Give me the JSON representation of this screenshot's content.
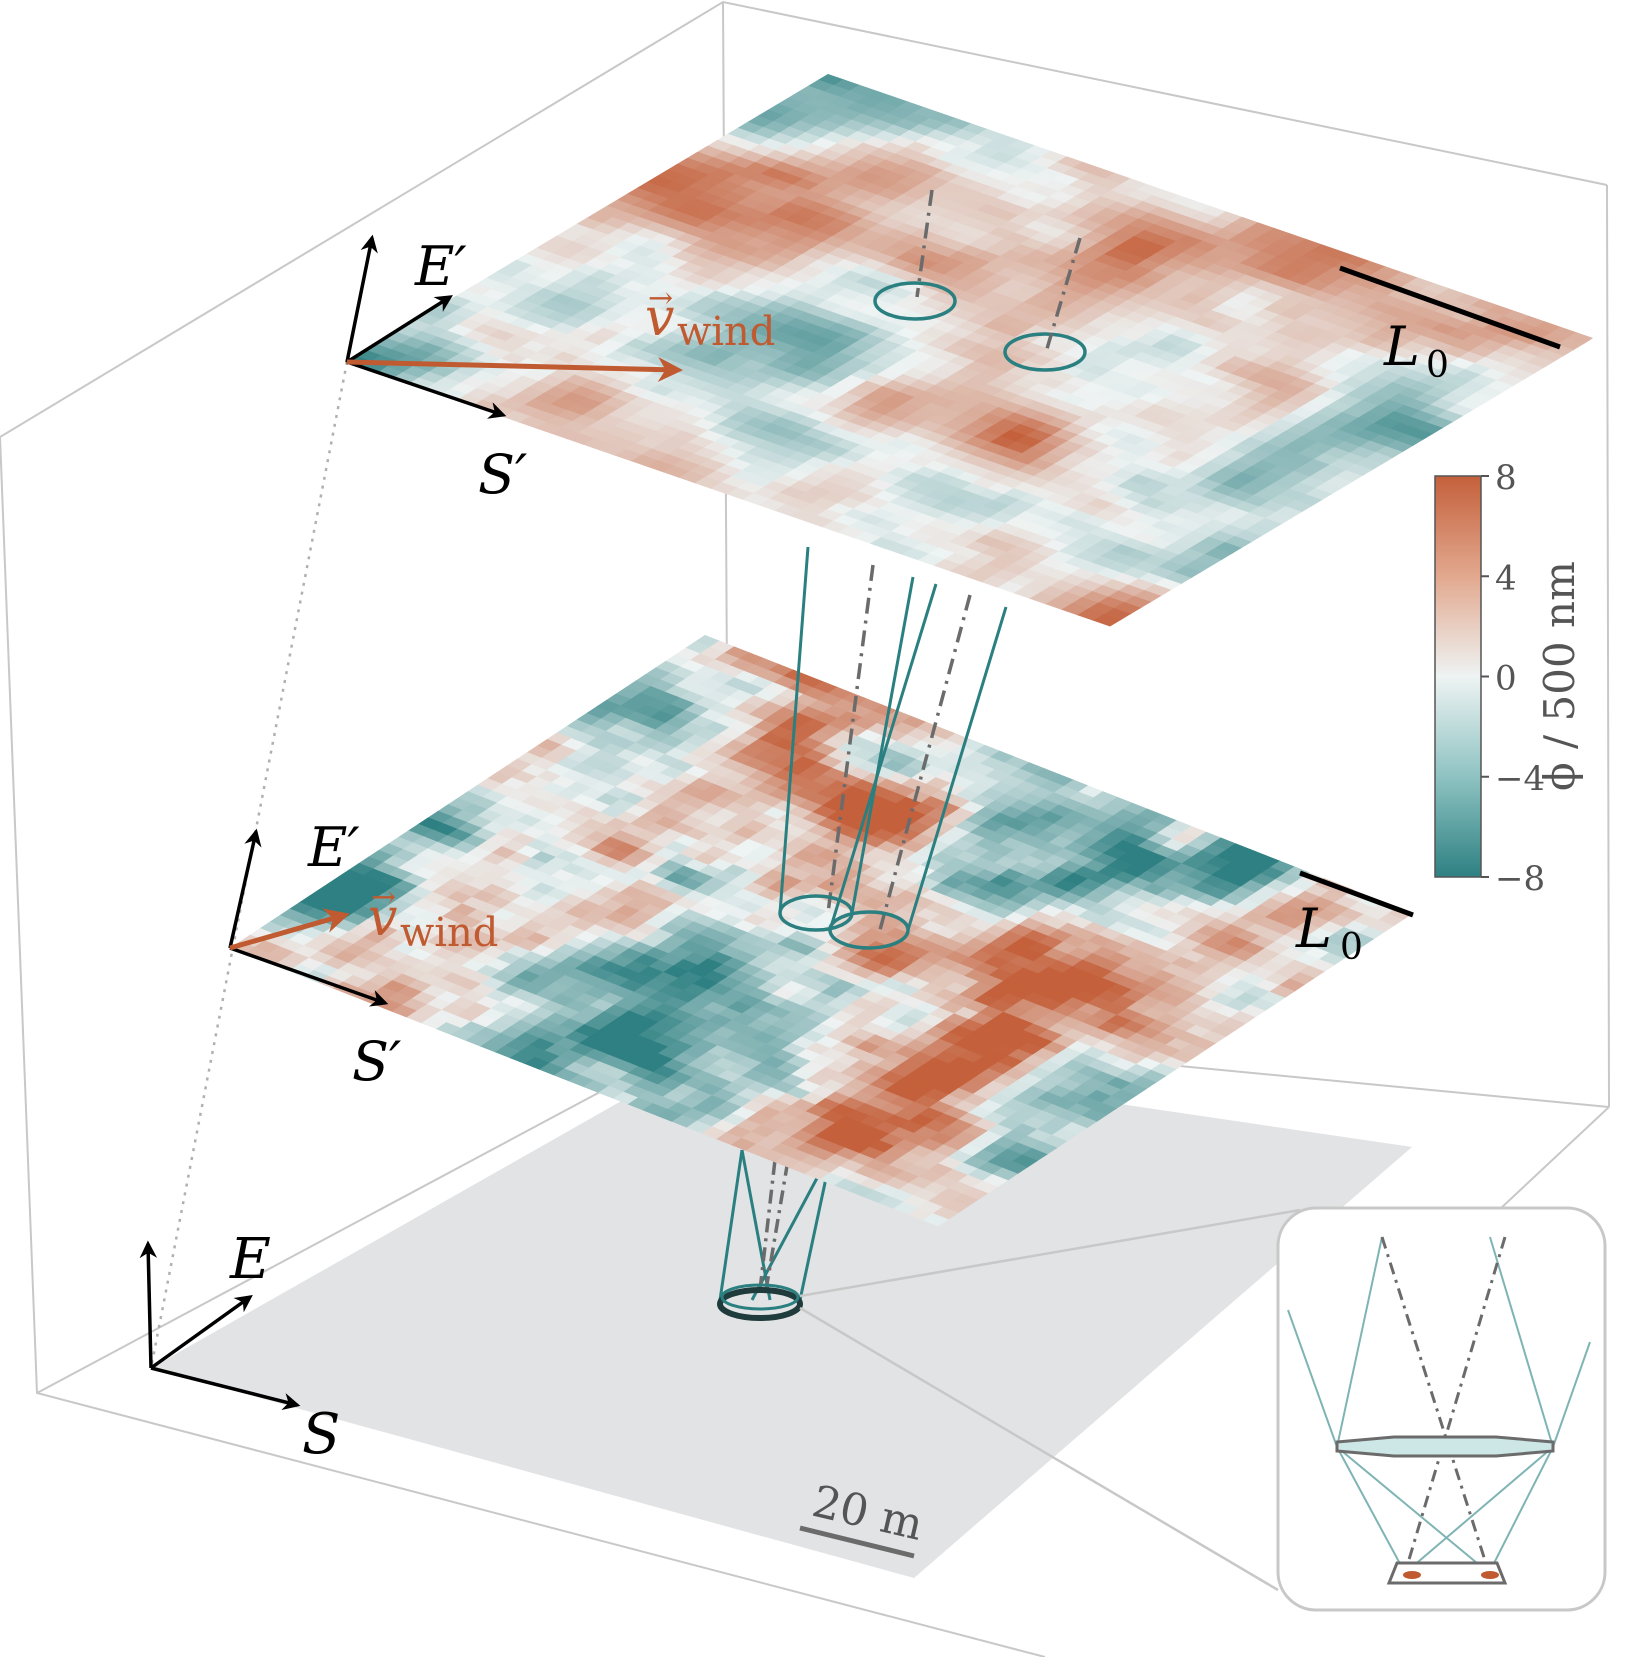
{
  "labels": {
    "top_E": "E′",
    "top_S": "S′",
    "mid_E": "E′",
    "mid_S": "S′",
    "ground_E": "E",
    "ground_S": "S",
    "wind_v": "v",
    "wind_sub": "wind",
    "L0_main": "L",
    "L0_sub": "0",
    "scale_bar": "20 m"
  },
  "colorbar": {
    "label": "ϕ / 500 nm",
    "ticks": [
      "8",
      "4",
      "0",
      "−4",
      "−8"
    ],
    "values": [
      8,
      4,
      0,
      -4,
      -8
    ],
    "min": -8,
    "max": 8,
    "color_min": "#2e8082",
    "color_mid": "#eef3f3",
    "color_max": "#c4603b"
  },
  "colors": {
    "wind": "#c05a30",
    "beam": "#2a7f80",
    "axis": "#000000",
    "box": "#c8c8c8",
    "ground": "#e2e3e5",
    "dashdot": "#6b6b6b"
  }
}
